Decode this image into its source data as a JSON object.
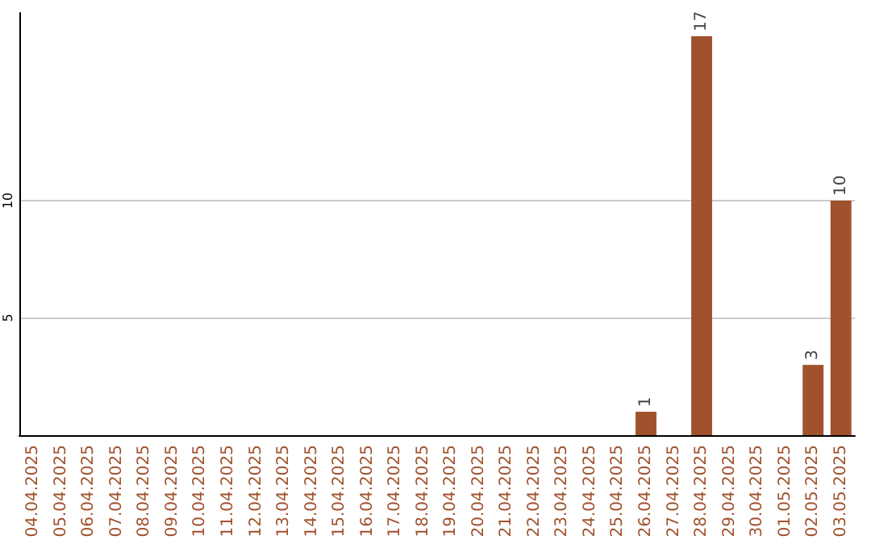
{
  "chart_data": {
    "type": "bar",
    "categories": [
      "04.04.2025",
      "05.04.2025",
      "06.04.2025",
      "07.04.2025",
      "08.04.2025",
      "09.04.2025",
      "10.04.2025",
      "11.04.2025",
      "12.04.2025",
      "13.04.2025",
      "14.04.2025",
      "15.04.2025",
      "16.04.2025",
      "17.04.2025",
      "18.04.2025",
      "19.04.2025",
      "20.04.2025",
      "21.04.2025",
      "22.04.2025",
      "23.04.2025",
      "24.04.2025",
      "25.04.2025",
      "26.04.2025",
      "27.04.2025",
      "28.04.2025",
      "29.04.2025",
      "30.04.2025",
      "01.05.2025",
      "02.05.2025",
      "03.05.2025"
    ],
    "values": [
      null,
      null,
      null,
      null,
      null,
      null,
      null,
      null,
      null,
      null,
      null,
      null,
      null,
      null,
      null,
      null,
      null,
      null,
      null,
      null,
      null,
      null,
      1,
      null,
      17,
      null,
      null,
      null,
      3,
      10
    ],
    "color": "#a0522d",
    "value_labels": [
      null,
      null,
      null,
      null,
      null,
      null,
      null,
      null,
      null,
      null,
      null,
      null,
      null,
      null,
      null,
      null,
      null,
      null,
      null,
      null,
      null,
      null,
      "1",
      null,
      "17",
      null,
      null,
      null,
      "3",
      "10"
    ],
    "ylim": [
      0,
      18
    ],
    "yticks": [
      5,
      10
    ],
    "grid": "y"
  }
}
